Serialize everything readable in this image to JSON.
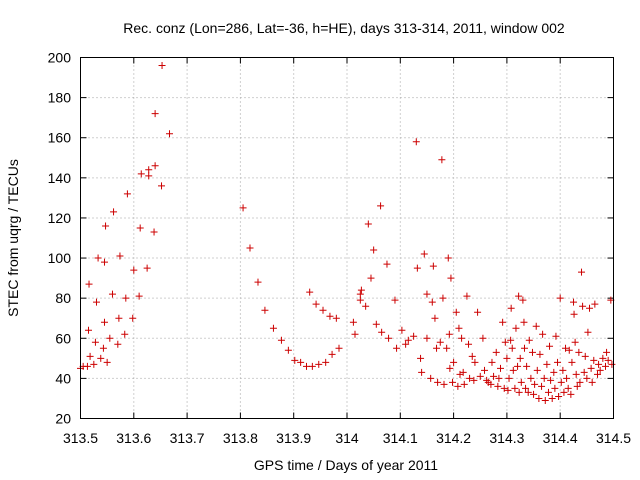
{
  "chart_data": {
    "type": "scatter",
    "title": "Rec. conz (Lon=286, Lat=-36, h=HE), days 313-314, 2011, window 002",
    "xlabel": "GPS time / Days of year 2011",
    "ylabel": "STEC from uqrg / TECUs",
    "xlim": [
      313.5,
      314.5
    ],
    "ylim": [
      20,
      200
    ],
    "x_ticks": [
      313.5,
      313.6,
      313.7,
      313.8,
      313.9,
      314.0,
      314.1,
      314.2,
      314.3,
      314.4,
      314.5
    ],
    "x_tick_labels": [
      "313.5",
      "313.6",
      "313.7",
      "313.8",
      "313.9",
      "314",
      "314.1",
      "314.2",
      "314.3",
      "314.4",
      "314.5"
    ],
    "y_ticks": [
      20,
      40,
      60,
      80,
      100,
      120,
      140,
      160,
      180,
      200
    ],
    "y_tick_labels": [
      "20",
      "40",
      "60",
      "80",
      "100",
      "120",
      "140",
      "160",
      "180",
      "200"
    ],
    "grid": true,
    "marker": "+",
    "color": "#cc0000",
    "points": [
      [
        313.5,
        45
      ],
      [
        313.505,
        46
      ],
      [
        313.513,
        46
      ],
      [
        313.518,
        51
      ],
      [
        313.515,
        64
      ],
      [
        313.516,
        87
      ],
      [
        313.525,
        47
      ],
      [
        313.528,
        58
      ],
      [
        313.53,
        78
      ],
      [
        313.533,
        100
      ],
      [
        313.538,
        50
      ],
      [
        313.543,
        55
      ],
      [
        313.545,
        68
      ],
      [
        313.545,
        98
      ],
      [
        313.547,
        116
      ],
      [
        313.55,
        48
      ],
      [
        313.555,
        60
      ],
      [
        313.56,
        82
      ],
      [
        313.562,
        123
      ],
      [
        313.57,
        57
      ],
      [
        313.572,
        70
      ],
      [
        313.574,
        101
      ],
      [
        313.583,
        62
      ],
      [
        313.585,
        80
      ],
      [
        313.588,
        132
      ],
      [
        313.598,
        70
      ],
      [
        313.6,
        94
      ],
      [
        313.61,
        81
      ],
      [
        313.612,
        115
      ],
      [
        313.614,
        142
      ],
      [
        313.625,
        95
      ],
      [
        313.628,
        141
      ],
      [
        313.628,
        144
      ],
      [
        313.638,
        113
      ],
      [
        313.64,
        146
      ],
      [
        313.64,
        172
      ],
      [
        313.652,
        136
      ],
      [
        313.653,
        196
      ],
      [
        313.667,
        162
      ],
      [
        313.805,
        125
      ],
      [
        313.818,
        105
      ],
      [
        313.833,
        88
      ],
      [
        313.846,
        74
      ],
      [
        313.862,
        65
      ],
      [
        313.877,
        59
      ],
      [
        313.89,
        54
      ],
      [
        313.902,
        49
      ],
      [
        313.913,
        48
      ],
      [
        313.924,
        46
      ],
      [
        313.93,
        83
      ],
      [
        313.935,
        46
      ],
      [
        313.942,
        77
      ],
      [
        313.947,
        47
      ],
      [
        313.955,
        74
      ],
      [
        313.96,
        48
      ],
      [
        313.968,
        71
      ],
      [
        313.972,
        52
      ],
      [
        313.98,
        70
      ],
      [
        313.985,
        55
      ],
      [
        314.012,
        68
      ],
      [
        314.015,
        62
      ],
      [
        314.025,
        82
      ],
      [
        314.025,
        79
      ],
      [
        314.027,
        84
      ],
      [
        314.035,
        76
      ],
      [
        314.04,
        117
      ],
      [
        314.045,
        90
      ],
      [
        314.05,
        104
      ],
      [
        314.055,
        67
      ],
      [
        314.063,
        126
      ],
      [
        314.065,
        63
      ],
      [
        314.075,
        97
      ],
      [
        314.078,
        60
      ],
      [
        314.09,
        79
      ],
      [
        314.093,
        55
      ],
      [
        314.103,
        64
      ],
      [
        314.11,
        57
      ],
      [
        314.115,
        59
      ],
      [
        314.125,
        61
      ],
      [
        314.13,
        158
      ],
      [
        314.132,
        95
      ],
      [
        314.138,
        50
      ],
      [
        314.14,
        43
      ],
      [
        314.145,
        102
      ],
      [
        314.15,
        60
      ],
      [
        314.15,
        82
      ],
      [
        314.157,
        40
      ],
      [
        314.16,
        78
      ],
      [
        314.162,
        96
      ],
      [
        314.165,
        70
      ],
      [
        314.168,
        55
      ],
      [
        314.17,
        38
      ],
      [
        314.175,
        58
      ],
      [
        314.178,
        149
      ],
      [
        314.18,
        80
      ],
      [
        314.182,
        37
      ],
      [
        314.187,
        55
      ],
      [
        314.19,
        100
      ],
      [
        314.192,
        62
      ],
      [
        314.193,
        45
      ],
      [
        314.195,
        90
      ],
      [
        314.198,
        38
      ],
      [
        314.2,
        48
      ],
      [
        314.205,
        73
      ],
      [
        314.208,
        36
      ],
      [
        314.21,
        65
      ],
      [
        314.212,
        42
      ],
      [
        314.215,
        60
      ],
      [
        314.218,
        43
      ],
      [
        314.22,
        37
      ],
      [
        314.225,
        81
      ],
      [
        314.228,
        57
      ],
      [
        314.23,
        40
      ],
      [
        314.235,
        51
      ],
      [
        314.238,
        39
      ],
      [
        314.24,
        48
      ],
      [
        314.245,
        73
      ],
      [
        314.25,
        41
      ],
      [
        314.255,
        60
      ],
      [
        314.258,
        44
      ],
      [
        314.262,
        39
      ],
      [
        314.265,
        38
      ],
      [
        314.27,
        37
      ],
      [
        314.272,
        48
      ],
      [
        314.275,
        41
      ],
      [
        314.28,
        53
      ],
      [
        314.283,
        36
      ],
      [
        314.285,
        40
      ],
      [
        314.288,
        45
      ],
      [
        314.292,
        68
      ],
      [
        314.295,
        35
      ],
      [
        314.297,
        58
      ],
      [
        314.3,
        50
      ],
      [
        314.302,
        34
      ],
      [
        314.304,
        40
      ],
      [
        314.307,
        59
      ],
      [
        314.308,
        75
      ],
      [
        314.31,
        55
      ],
      [
        314.312,
        44
      ],
      [
        314.315,
        35
      ],
      [
        314.317,
        65
      ],
      [
        314.32,
        46
      ],
      [
        314.322,
        81
      ],
      [
        314.323,
        33
      ],
      [
        314.325,
        50
      ],
      [
        314.327,
        38
      ],
      [
        314.33,
        79
      ],
      [
        314.332,
        68
      ],
      [
        314.333,
        55
      ],
      [
        314.335,
        35
      ],
      [
        314.337,
        46
      ],
      [
        314.34,
        33
      ],
      [
        314.342,
        59
      ],
      [
        314.345,
        40
      ],
      [
        314.348,
        53
      ],
      [
        314.35,
        32
      ],
      [
        314.352,
        37
      ],
      [
        314.355,
        66
      ],
      [
        314.357,
        44
      ],
      [
        314.36,
        30
      ],
      [
        314.362,
        52
      ],
      [
        314.365,
        36
      ],
      [
        314.367,
        62
      ],
      [
        314.37,
        40
      ],
      [
        314.372,
        29
      ],
      [
        314.375,
        47
      ],
      [
        314.378,
        33
      ],
      [
        314.38,
        56
      ],
      [
        314.382,
        39
      ],
      [
        314.385,
        30
      ],
      [
        314.388,
        43
      ],
      [
        314.39,
        35
      ],
      [
        314.392,
        61
      ],
      [
        314.395,
        48
      ],
      [
        314.397,
        31
      ],
      [
        314.4,
        80
      ],
      [
        314.402,
        38
      ],
      [
        314.405,
        44
      ],
      [
        314.407,
        33
      ],
      [
        314.41,
        55
      ],
      [
        314.412,
        40
      ],
      [
        314.415,
        35
      ],
      [
        314.417,
        54
      ],
      [
        314.42,
        32
      ],
      [
        314.422,
        48
      ],
      [
        314.425,
        78
      ],
      [
        314.426,
        72
      ],
      [
        314.428,
        58
      ],
      [
        314.43,
        42
      ],
      [
        314.432,
        36
      ],
      [
        314.435,
        53
      ],
      [
        314.437,
        38
      ],
      [
        314.44,
        93
      ],
      [
        314.442,
        76
      ],
      [
        314.445,
        43
      ],
      [
        314.447,
        51
      ],
      [
        314.45,
        40
      ],
      [
        314.452,
        63
      ],
      [
        314.455,
        75
      ],
      [
        314.458,
        45
      ],
      [
        314.46,
        38
      ],
      [
        314.463,
        49
      ],
      [
        314.465,
        77
      ],
      [
        314.47,
        42
      ],
      [
        314.472,
        47
      ],
      [
        314.475,
        44
      ],
      [
        314.48,
        50
      ],
      [
        314.485,
        46
      ],
      [
        314.487,
        53
      ],
      [
        314.49,
        49
      ],
      [
        314.495,
        79
      ],
      [
        314.497,
        47
      ]
    ]
  }
}
